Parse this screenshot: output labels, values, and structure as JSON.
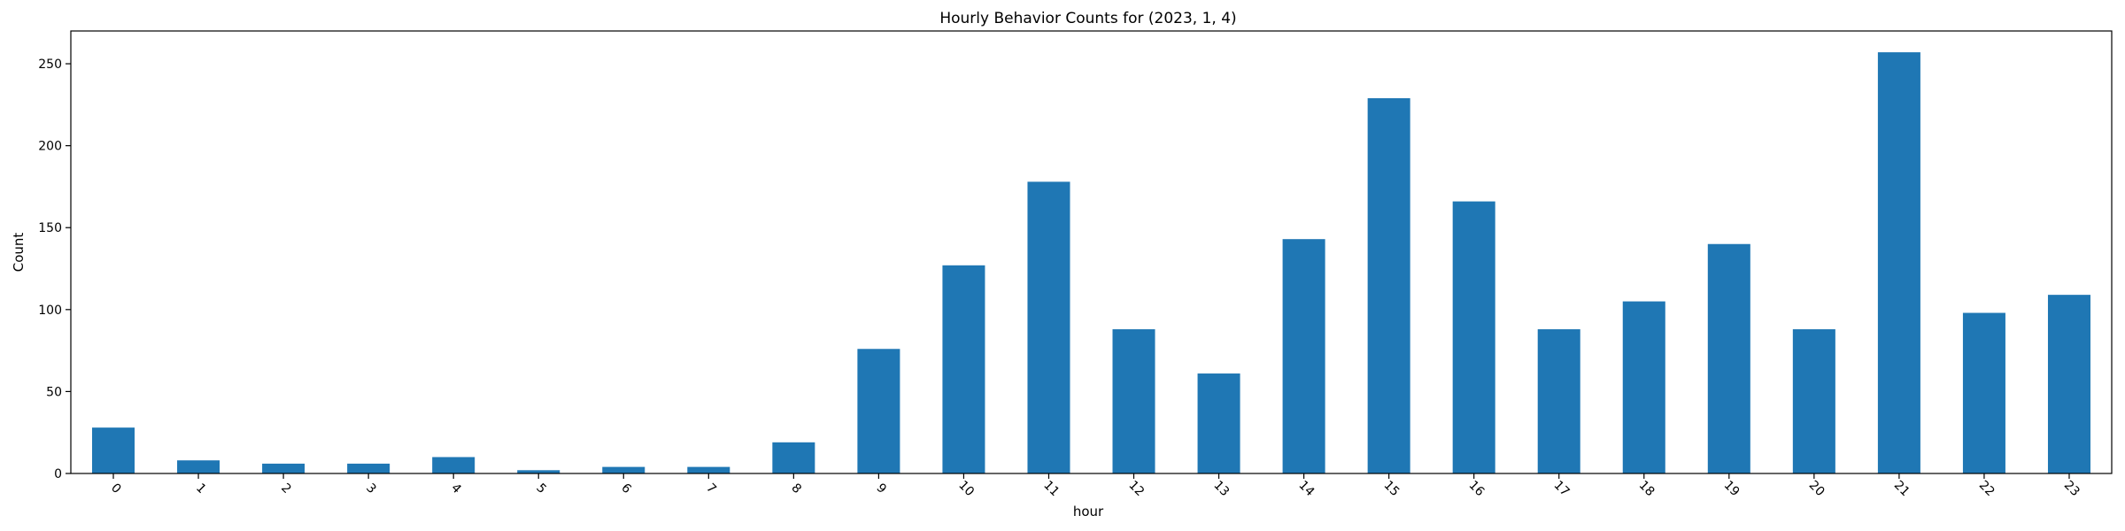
{
  "chart_data": {
    "type": "bar",
    "title": "Hourly Behavior Counts for (2023, 1, 4)",
    "xlabel": "hour",
    "ylabel": "Count",
    "categories": [
      "0",
      "1",
      "2",
      "3",
      "4",
      "5",
      "6",
      "7",
      "8",
      "9",
      "10",
      "11",
      "12",
      "13",
      "14",
      "15",
      "16",
      "17",
      "18",
      "19",
      "20",
      "21",
      "22",
      "23"
    ],
    "values": [
      28,
      8,
      6,
      6,
      10,
      2,
      4,
      4,
      19,
      76,
      127,
      178,
      88,
      61,
      143,
      229,
      166,
      88,
      105,
      140,
      88,
      257,
      98,
      109
    ],
    "ylim": [
      0,
      270
    ],
    "yticks": [
      0,
      50,
      100,
      150,
      200,
      250
    ],
    "xtick_rotation_deg": 45,
    "grid": false,
    "bar_color": "#1f77b4"
  }
}
